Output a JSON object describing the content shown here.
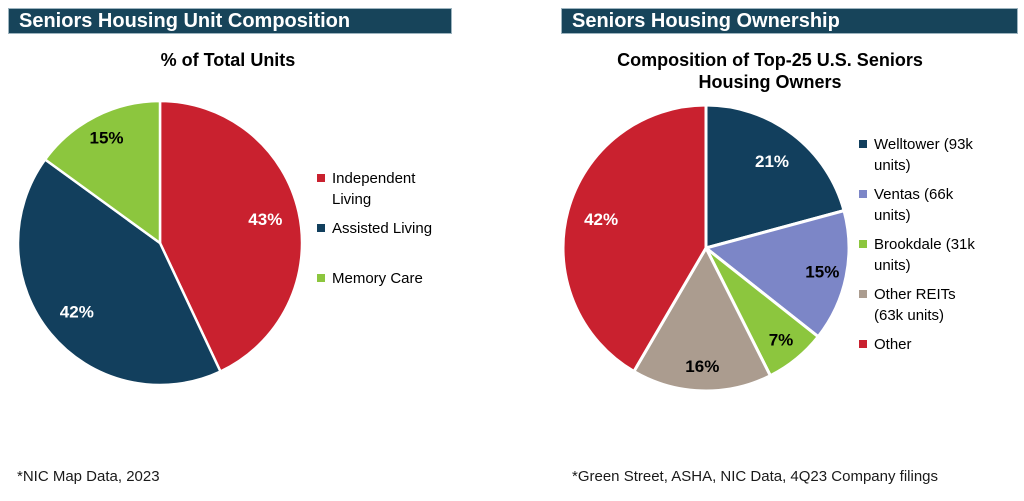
{
  "panels": {
    "left": {
      "header": "Seniors Housing Unit Composition",
      "subtitle": "% of Total Units",
      "footnote": "*NIC Map Data, 2023"
    },
    "right": {
      "header": "Seniors Housing Ownership",
      "subtitle": "Composition of Top-25 U.S. Seniors Housing Owners",
      "footnote": "*Green Street, ASHA, NIC Data, 4Q23 Company filings"
    }
  },
  "colors": {
    "header_bar_bg": "#17445A",
    "header_bar_border": "#9DB4BF",
    "header_bar_text": "#FFFFFF",
    "body_text": "#000000",
    "pie_separator": "#FFFFFF"
  },
  "chart_data": [
    {
      "type": "pie",
      "title": "% of Total Units",
      "categories": [
        "Independent Living",
        "Assisted Living",
        "Memory Care"
      ],
      "values": [
        43,
        42,
        15
      ],
      "colors": [
        "#C9212F",
        "#123F5D",
        "#8CC63E"
      ],
      "data_labels": [
        "43%",
        "42%",
        "15%"
      ],
      "data_label_colors": [
        "#FFFFFF",
        "#FFFFFF",
        "#000000"
      ],
      "start_angle_deg": 0,
      "direction": "clockwise",
      "legend_position": "right",
      "source_note": "*NIC Map Data, 2023"
    },
    {
      "type": "pie",
      "title": "Composition of Top-25 U.S. Seniors Housing Owners",
      "categories": [
        "Welltower (93k units)",
        "Ventas (66k units)",
        "Brookdale (31k units)",
        "Other REITs (63k units)",
        "Other"
      ],
      "values": [
        21,
        15,
        7,
        16,
        42
      ],
      "colors": [
        "#123F5D",
        "#7C86C7",
        "#8CC63E",
        "#AB9C8F",
        "#C9212F"
      ],
      "data_labels": [
        "21%",
        "15%",
        "7%",
        "16%",
        "42%"
      ],
      "data_label_colors": [
        "#FFFFFF",
        "#000000",
        "#000000",
        "#000000",
        "#FFFFFF"
      ],
      "start_angle_deg": 0,
      "direction": "clockwise",
      "legend_position": "right",
      "source_note": "*Green Street, ASHA, NIC Data, 4Q23 Company filings"
    }
  ]
}
